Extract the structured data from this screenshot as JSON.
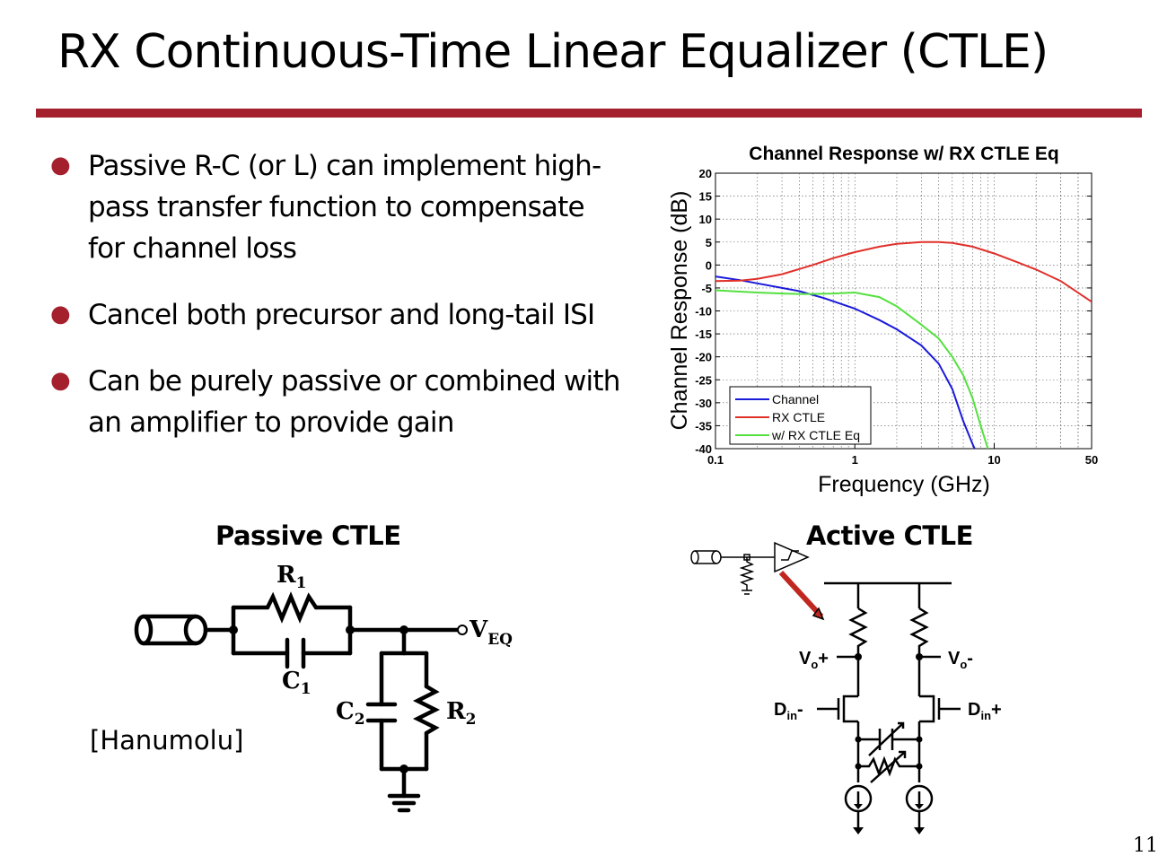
{
  "slide": {
    "title": "RX Continuous-Time Linear Equalizer (CTLE)",
    "page_number": "11",
    "accent_color": "#a5202d"
  },
  "bullets": [
    "Passive R-C (or L) can implement high-pass transfer function to compensate for channel loss",
    "Cancel both precursor and long-tail ISI",
    "Can be purely passive or combined with an amplifier to provide gain"
  ],
  "passive": {
    "heading": "Passive CTLE",
    "r1": "R",
    "r1_sub": "1",
    "c1": "C",
    "c1_sub": "1",
    "c2": "C",
    "c2_sub": "2",
    "r2": "R",
    "r2_sub": "2",
    "veq": "V",
    "veq_sub": "EQ",
    "citation": "[Hanumolu]"
  },
  "active": {
    "heading": "Active CTLE",
    "vo_plus": "V",
    "vo_plus_sub": "o",
    "vo_plus_sign": "+",
    "vo_minus": "V",
    "vo_minus_sub": "o",
    "vo_minus_sign": "-",
    "din_minus": "D",
    "din_minus_sub": "in",
    "din_minus_sign": "-",
    "din_plus": "D",
    "din_plus_sub": "in",
    "din_plus_sign": "+"
  },
  "chart_data": {
    "type": "line",
    "title": "Channel Response w/ RX CTLE Eq",
    "xlabel": "Frequency (GHz)",
    "ylabel": "Channel Response (dB)",
    "x_scale": "log",
    "xlim": [
      0.1,
      50
    ],
    "ylim": [
      -40,
      20
    ],
    "xticks": [
      "0.1",
      "1",
      "10",
      "50"
    ],
    "yticks": [
      "20",
      "15",
      "10",
      "5",
      "0",
      "-5",
      "-10",
      "-15",
      "-20",
      "-25",
      "-30",
      "-35",
      "-40"
    ],
    "grid": true,
    "legend_position": "bottom-left",
    "series": [
      {
        "name": "Channel",
        "color": "#1a1adb",
        "x": [
          0.1,
          0.15,
          0.2,
          0.3,
          0.4,
          0.6,
          0.8,
          1,
          1.5,
          2,
          3,
          4,
          5,
          6,
          7,
          7.5
        ],
        "y": [
          -2.5,
          -3.3,
          -4,
          -5,
          -5.7,
          -7.2,
          -8.5,
          -9.5,
          -12,
          -14,
          -17.5,
          -21.5,
          -27,
          -34,
          -39,
          -41
        ]
      },
      {
        "name": "RX CTLE",
        "color": "#e0302a",
        "x": [
          0.1,
          0.15,
          0.2,
          0.3,
          0.5,
          0.7,
          1,
          1.5,
          2,
          3,
          4,
          5,
          7,
          10,
          15,
          20,
          30,
          50
        ],
        "y": [
          -3.5,
          -3.4,
          -3,
          -2,
          0,
          1.5,
          2.8,
          4,
          4.6,
          5,
          5,
          4.8,
          4,
          2.5,
          0.5,
          -1,
          -3.5,
          -8
        ]
      },
      {
        "name": "w/ RX CTLE Eq",
        "color": "#55e040",
        "x": [
          0.1,
          0.15,
          0.2,
          0.3,
          0.4,
          0.5,
          0.7,
          1,
          1.5,
          2,
          3,
          4,
          5,
          6,
          7,
          8,
          9
        ],
        "y": [
          -5.5,
          -5.8,
          -6,
          -6.2,
          -6.3,
          -6.3,
          -6.2,
          -6,
          -7,
          -9,
          -13,
          -16,
          -20,
          -24,
          -29,
          -35,
          -40
        ]
      }
    ]
  }
}
